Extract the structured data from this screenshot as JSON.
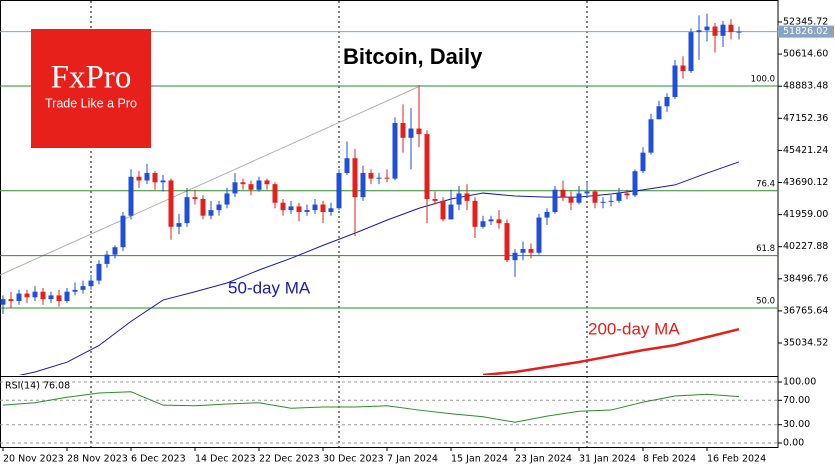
{
  "chart_data": {
    "type": "candlestick",
    "title": "Bitcoin, Daily",
    "categories": [
      "20 Nov 2023",
      null,
      null,
      null,
      null,
      null,
      null,
      null,
      "28 Nov 2023",
      null,
      null,
      null,
      null,
      null,
      null,
      null,
      "6 Dec 2023",
      null,
      null,
      null,
      null,
      null,
      null,
      null,
      "14 Dec 2023",
      null,
      null,
      null,
      null,
      null,
      null,
      null,
      "22 Dec 2023",
      null,
      null,
      null,
      null,
      null,
      null,
      null,
      "30 Dec 2023",
      null,
      null,
      null,
      null,
      null,
      null,
      null,
      "7 Jan 2024",
      null,
      null,
      null,
      null,
      null,
      null,
      null,
      "15 Jan 2024",
      null,
      null,
      null,
      null,
      null,
      null,
      null,
      "23 Jan 2024",
      null,
      null,
      null,
      null,
      null,
      null,
      null,
      "31 Jan 2024",
      null,
      null,
      null,
      null,
      null,
      null,
      null,
      "8 Feb 2024",
      null,
      null,
      null,
      null,
      null,
      null,
      null,
      "16 Feb 2024",
      null,
      null,
      null,
      null
    ],
    "open": [
      37100,
      37400,
      37300,
      37700,
      37500,
      37800,
      37400,
      37600,
      37300,
      37800,
      37900,
      38100,
      38400,
      39300,
      39800,
      40200,
      41900,
      44000,
      43800,
      44200,
      43700,
      43800,
      41300,
      41500,
      42900,
      42800,
      41900,
      42200,
      42500,
      43100,
      43700,
      43600,
      43300,
      43800,
      43600,
      42600,
      42200,
      42400,
      42100,
      42200,
      42500,
      42100,
      42300,
      44200,
      45000,
      42900,
      44200,
      43900,
      43950,
      43900,
      46900,
      46100,
      46600,
      46300,
      42800,
      42700,
      41700,
      42500,
      43100,
      42700,
      41300,
      41600,
      41700,
      41500,
      39500,
      39900,
      40100,
      39900,
      41800,
      42100,
      43300,
      42900,
      42600,
      43100,
      43200,
      42600,
      42650,
      42700,
      43100,
      43000,
      44300,
      45300,
      47100,
      47800,
      48300,
      50000,
      49700,
      51800,
      51900,
      52100,
      51600,
      52200,
      51800
    ],
    "high": [
      37600,
      37800,
      37900,
      37900,
      38100,
      38000,
      37800,
      37900,
      38000,
      38300,
      38400,
      38700,
      39500,
      40000,
      40300,
      42100,
      44400,
      44300,
      44700,
      44300,
      44100,
      43900,
      42000,
      43400,
      43300,
      43000,
      42700,
      42700,
      43400,
      44200,
      43900,
      43800,
      44000,
      43900,
      43700,
      42800,
      42700,
      42600,
      42500,
      42800,
      42700,
      42600,
      44400,
      45900,
      45500,
      44600,
      44400,
      44200,
      44400,
      47200,
      47900,
      47700,
      48950,
      46500,
      43200,
      42900,
      43300,
      43500,
      43600,
      42900,
      41900,
      41900,
      42200,
      41700,
      40100,
      40500,
      40400,
      42000,
      42300,
      43500,
      43800,
      43200,
      43500,
      43700,
      43300,
      42900,
      43000,
      43400,
      43300,
      44400,
      45600,
      47400,
      48100,
      48500,
      50300,
      50500,
      52000,
      52700,
      52800,
      52300,
      52400,
      52500,
      52100
    ],
    "low": [
      36600,
      36900,
      37100,
      37200,
      37300,
      37100,
      37200,
      37000,
      37200,
      37600,
      37700,
      37900,
      38200,
      39100,
      39600,
      40000,
      41700,
      43400,
      43600,
      43300,
      43200,
      40600,
      40900,
      41300,
      42500,
      41700,
      41700,
      41900,
      42300,
      42900,
      43300,
      43000,
      43200,
      43300,
      42300,
      41900,
      42000,
      41600,
      41900,
      42000,
      41500,
      41900,
      42200,
      44100,
      40800,
      42700,
      43600,
      43600,
      43700,
      43800,
      45300,
      44400,
      45600,
      41500,
      42500,
      41600,
      41700,
      42200,
      42200,
      40700,
      41200,
      41400,
      41200,
      39400,
      38600,
      39500,
      39600,
      39800,
      41400,
      42000,
      42700,
      42200,
      42500,
      42900,
      42300,
      42300,
      42400,
      42600,
      42800,
      42900,
      44200,
      45200,
      47100,
      47500,
      48200,
      49300,
      49600,
      50300,
      51300,
      50700,
      51000,
      51400,
      51400
    ],
    "close": [
      37400,
      37300,
      37700,
      37500,
      37800,
      37400,
      37600,
      37300,
      37800,
      37900,
      38100,
      38400,
      39300,
      39800,
      40200,
      41900,
      44000,
      43800,
      44200,
      43700,
      43800,
      41300,
      41500,
      42900,
      42800,
      41900,
      42200,
      42500,
      43100,
      43700,
      43600,
      43300,
      43800,
      43600,
      42600,
      42200,
      42400,
      42100,
      42200,
      42500,
      42100,
      42300,
      44200,
      45000,
      42900,
      44200,
      43900,
      43950,
      43900,
      46900,
      46100,
      46600,
      46300,
      42800,
      42700,
      41700,
      42500,
      43100,
      42700,
      41300,
      41600,
      41700,
      41500,
      39500,
      39900,
      40100,
      39900,
      41800,
      42100,
      43300,
      42900,
      42600,
      43100,
      43200,
      42600,
      42650,
      42700,
      43100,
      43000,
      44300,
      45300,
      47100,
      47800,
      48300,
      50000,
      49700,
      51800,
      51900,
      52100,
      51600,
      52200,
      51800,
      51826.02
    ],
    "up_color": "#1f4fd8",
    "down_color": "#e3201b",
    "ylim": [
      33470,
      52885
    ],
    "yticks": [
      {
        "value": 52345.72,
        "label": "52345.72"
      },
      {
        "value": 50614.6,
        "label": "50614.60"
      },
      {
        "value": 48883.48,
        "label": "48883.48"
      },
      {
        "value": 47152.36,
        "label": "47152.36"
      },
      {
        "value": 45421.24,
        "label": "45421.24"
      },
      {
        "value": 43690.12,
        "label": "43690.12"
      },
      {
        "value": 41959,
        "label": "41959.00"
      },
      {
        "value": 40227.88,
        "label": "40227.88"
      },
      {
        "value": 38496.76,
        "label": "38496.76"
      },
      {
        "value": 36765.64,
        "label": "36765.64"
      },
      {
        "value": 35034.52,
        "label": "35034.52"
      }
    ],
    "last_price": 51826.02,
    "fib_levels": [
      {
        "ratio": "100.0",
        "price": 48894
      },
      {
        "ratio": "76.4",
        "price": 43243
      },
      {
        "ratio": "61.8",
        "price": 39747
      },
      {
        "ratio": "50.0",
        "price": 36921
      }
    ],
    "overlays": [
      {
        "name": "50-day MA",
        "color": "#1a1aa6",
        "x": [
          0,
          4,
          8,
          12,
          16,
          20,
          24,
          28,
          32,
          36,
          40,
          44,
          48,
          52,
          56,
          60,
          64,
          68,
          72,
          76,
          80,
          84,
          88,
          92
        ],
        "values": [
          33100,
          33470,
          34000,
          34900,
          36200,
          37350,
          37800,
          38270,
          38970,
          39600,
          40300,
          40960,
          41660,
          42300,
          42800,
          43120,
          42960,
          42900,
          42900,
          43070,
          43290,
          43560,
          44200,
          44800
        ]
      },
      {
        "name": "200-day MA",
        "color": "#e3201b",
        "x": [
          60,
          64,
          68,
          72,
          76,
          80,
          84,
          88,
          92
        ],
        "values": [
          33310,
          33470,
          33740,
          34010,
          34330,
          34650,
          34920,
          35350,
          35780
        ]
      }
    ],
    "rsi": {
      "name": "RSI(14) 76.08",
      "color": "#2e8b2e",
      "x": [
        0,
        4,
        8,
        12,
        16,
        20,
        24,
        28,
        32,
        36,
        40,
        44,
        48,
        52,
        56,
        60,
        64,
        68,
        72,
        76,
        80,
        84,
        88,
        92
      ],
      "values": [
        62,
        66,
        75,
        82,
        84,
        62,
        61,
        64,
        66,
        57,
        59,
        59,
        61,
        54,
        48,
        43,
        34,
        44,
        52,
        54,
        67,
        77,
        80,
        76.08
      ],
      "ylim": [
        -6.6,
        106.6
      ],
      "yticks": [
        {
          "value": 100,
          "label": "100.00"
        },
        {
          "value": 70,
          "label": "70.00"
        },
        {
          "value": 30,
          "label": "30.00"
        },
        {
          "value": 0,
          "label": "0.00"
        }
      ]
    }
  },
  "logo": {
    "brand": "FxPro",
    "tagline": "Trade Like a Pro"
  }
}
